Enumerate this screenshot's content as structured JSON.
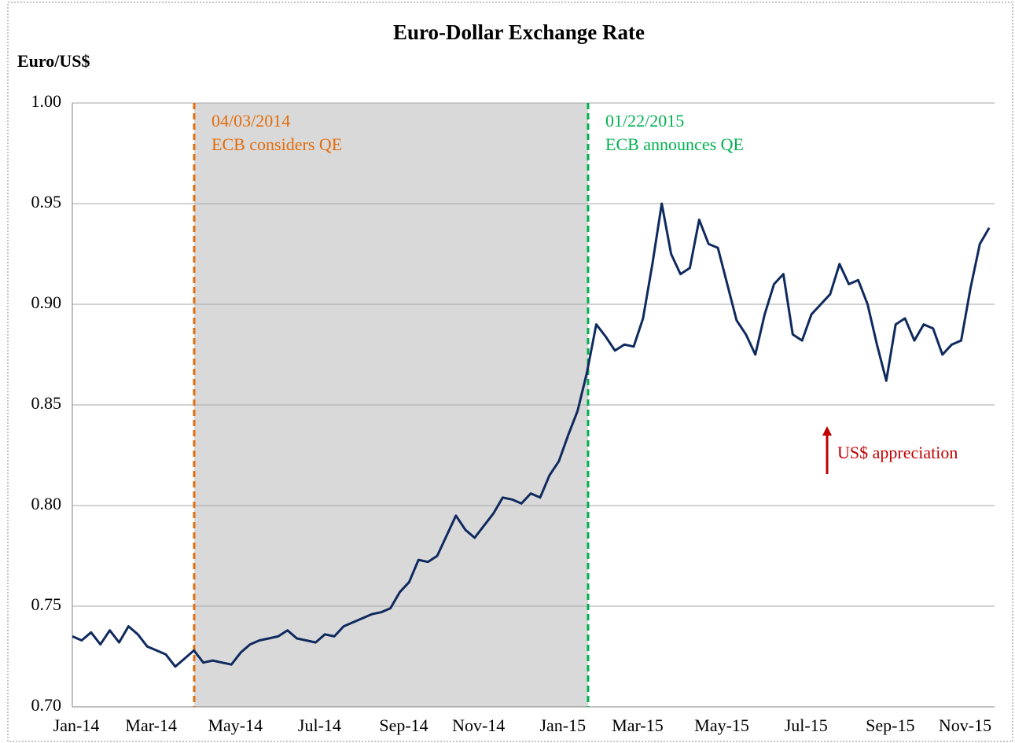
{
  "chart_data": {
    "type": "line",
    "title": "Euro-Dollar Exchange Rate",
    "y_axis_label": "Euro/US$",
    "categories": [
      "Jan-14",
      null,
      null,
      null,
      null,
      null,
      null,
      null,
      "Mar-14",
      null,
      null,
      null,
      null,
      null,
      null,
      null,
      null,
      "May-14",
      null,
      null,
      null,
      null,
      null,
      null,
      null,
      null,
      "Jul-14",
      null,
      null,
      null,
      null,
      null,
      null,
      null,
      null,
      "Sep-14",
      null,
      null,
      null,
      null,
      null,
      null,
      null,
      "Nov-14",
      null,
      null,
      null,
      null,
      null,
      null,
      null,
      null,
      "Jan-15",
      null,
      null,
      null,
      null,
      null,
      null,
      null,
      "Mar-15",
      null,
      null,
      null,
      null,
      null,
      null,
      null,
      null,
      "May-15",
      null,
      null,
      null,
      null,
      null,
      null,
      null,
      null,
      "Jul-15",
      null,
      null,
      null,
      null,
      null,
      null,
      null,
      null,
      "Sep-15",
      null,
      null,
      null,
      null,
      null,
      null,
      null,
      "Nov-15",
      null,
      null,
      null
    ],
    "series": [
      {
        "name": "Euro/US$",
        "color": "#0f2a5e",
        "values": [
          0.735,
          0.733,
          0.737,
          0.731,
          0.738,
          0.732,
          0.74,
          0.736,
          0.73,
          0.728,
          0.726,
          0.72,
          0.724,
          0.728,
          0.722,
          0.723,
          0.722,
          0.721,
          0.727,
          0.731,
          0.733,
          0.734,
          0.735,
          0.738,
          0.734,
          0.733,
          0.732,
          0.736,
          0.735,
          0.74,
          0.742,
          0.744,
          0.746,
          0.747,
          0.749,
          0.757,
          0.762,
          0.773,
          0.772,
          0.775,
          0.785,
          0.795,
          0.788,
          0.784,
          0.79,
          0.796,
          0.804,
          0.803,
          0.801,
          0.806,
          0.804,
          0.815,
          0.822,
          0.835,
          0.847,
          0.866,
          0.89,
          0.884,
          0.877,
          0.88,
          0.879,
          0.893,
          0.92,
          0.95,
          0.925,
          0.915,
          0.918,
          0.942,
          0.93,
          0.928,
          0.91,
          0.892,
          0.885,
          0.875,
          0.895,
          0.91,
          0.915,
          0.885,
          0.882,
          0.895,
          0.9,
          0.905,
          0.92,
          0.91,
          0.912,
          0.9,
          0.88,
          0.862,
          0.89,
          0.893,
          0.882,
          0.89,
          0.888,
          0.875,
          0.88,
          0.882,
          0.908,
          0.93,
          0.938
        ]
      }
    ],
    "ylim": [
      0.7,
      1.0
    ],
    "yticks": [
      {
        "value": 0.7,
        "label": "0.70"
      },
      {
        "value": 0.75,
        "label": "0.75"
      },
      {
        "value": 0.8,
        "label": "0.80"
      },
      {
        "value": 0.85,
        "label": "0.85"
      },
      {
        "value": 0.9,
        "label": "0.90"
      },
      {
        "value": 0.95,
        "label": "0.95"
      },
      {
        "value": 1.0,
        "label": "1.00"
      }
    ],
    "grid": true,
    "events": [
      {
        "date": "04/03/2014",
        "label": "ECB considers QE",
        "color": "#e46c0a"
      },
      {
        "date": "01/22/2015",
        "label": "ECB announces QE",
        "color": "#00b050"
      }
    ],
    "annotation": {
      "text": "US$ appreciation",
      "color": "#c00000"
    }
  }
}
